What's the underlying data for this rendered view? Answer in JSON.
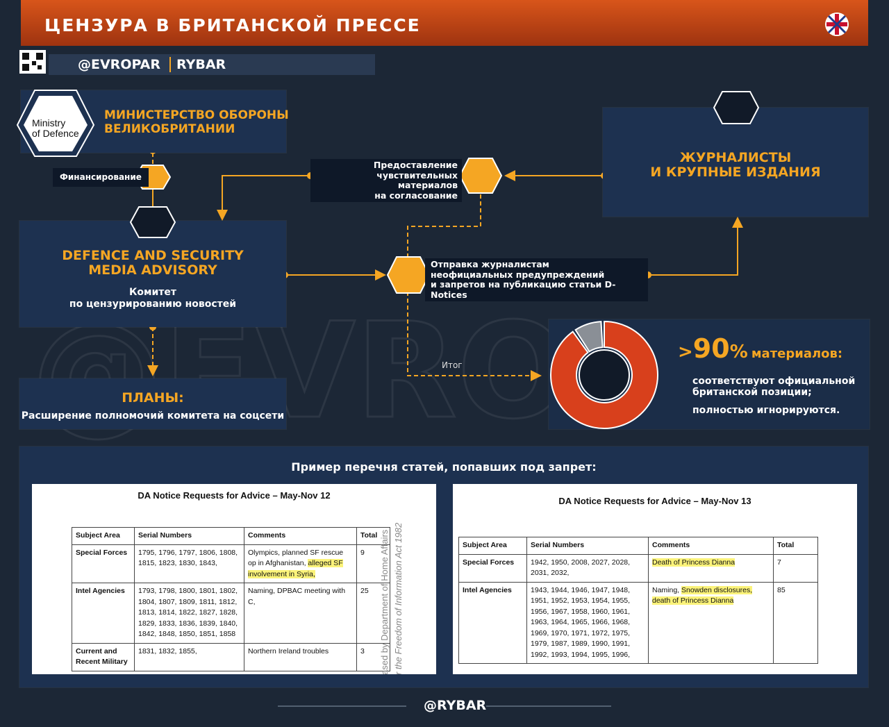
{
  "header": {
    "title": "ЦЕНЗУРА В БРИТАНСКОЙ ПРЕССЕ",
    "handle": "@EVROPAR",
    "brand": "RYBAR"
  },
  "watermark": "@EVROPAR",
  "mod": {
    "logo": [
      "Ministry",
      "of Defence"
    ],
    "title": [
      "МИНИСТЕРСТВО ОБОРОНЫ",
      "ВЕЛИКОБРИТАНИИ"
    ]
  },
  "funding": "Финансирование",
  "dsma": {
    "title": [
      "DEFENCE AND SECURITY",
      "MEDIA ADVISORY"
    ],
    "subtitle": [
      "Комитет",
      "по цензурированию новостей"
    ]
  },
  "plans": {
    "title": "ПЛАНЫ:",
    "text": "Расширение полномочий комитета на соцсети"
  },
  "journalists": {
    "title": [
      "ЖУРНАЛИСТЫ",
      "И КРУПНЫЕ ИЗДАНИЯ"
    ]
  },
  "submission": [
    "Предоставление",
    "чувствительных материалов",
    "на согласование"
  ],
  "notices": [
    "Отправка журналистам",
    "неофициальных предупреждений",
    "и запретов на публикацию статьи D-Notices"
  ],
  "result": "Итог",
  "stat": {
    "prefix": ">",
    "value": 90,
    "unit": "%",
    "label": "материалов:",
    "bullets": [
      [
        "соответствуют официальной",
        "британской позиции;"
      ],
      [
        "полностью игнорируются."
      ]
    ]
  },
  "examples": {
    "title": "Пример перечня статей, попавших под запрет:",
    "documents": [
      {
        "title": "DA Notice Requests for Advice – May-Nov 12",
        "headers": [
          "Subject Area",
          "Serial Numbers",
          "Comments",
          "Total"
        ],
        "rows": [
          [
            "Special Forces",
            "1795, 1796, 1797, 1806, 1808, 1815, 1823, 1830, 1843,",
            [
              {
                "text": "Olympics, planned SF rescue op in Afghanistan, ",
                "highlight": false
              },
              {
                "text": "alleged SF involvement in Syria,",
                "highlight": true
              }
            ],
            9
          ],
          [
            "Intel Agencies",
            "1793, 1798, 1800, 1801, 1802, 1804, 1807, 1809, 1811, 1812, 1813, 1814, 1822, 1827, 1828, 1829, 1833, 1836, 1839, 1840, 1842, 1848, 1850, 1851, 1858",
            [
              {
                "text": "Naming, DPBAC meeting with C,",
                "highlight": false
              }
            ],
            25
          ],
          [
            "Current and Recent Military",
            "1831, 1832, 1855,",
            [
              {
                "text": "Northern Ireland troubles",
                "highlight": false
              }
            ],
            3
          ]
        ],
        "side_note": [
          "ased by Department of Home Affairs",
          "r the Freedom of Information Act 1982"
        ]
      },
      {
        "title": "DA Notice Requests for Advice – May-Nov 13",
        "headers": [
          "Subject Area",
          "Serial Numbers",
          "Comments",
          "Total"
        ],
        "rows": [
          [
            "Special Forces",
            "1942, 1950, 2008, 2027, 2028, 2031, 2032,",
            [
              {
                "text": "Death of Princess Dianna",
                "highlight": true
              }
            ],
            7
          ],
          [
            "Intel Agencies",
            "1943, 1944, 1946, 1947, 1948, 1951, 1952, 1953, 1954, 1955, 1956, 1967, 1958, 1960, 1961, 1963, 1964, 1965,  1966, 1968, 1969, 1970, 1971, 1972, 1975, 1979, 1987, 1989, 1990, 1991, 1992, 1993, 1994, 1995, 1996,",
            [
              {
                "text": "Naming, ",
                "highlight": false
              },
              {
                "text": "Snowden disclosures, death of Princess Dianna",
                "highlight": true
              }
            ],
            85
          ]
        ]
      }
    ]
  },
  "footer": "@RYBAR"
}
